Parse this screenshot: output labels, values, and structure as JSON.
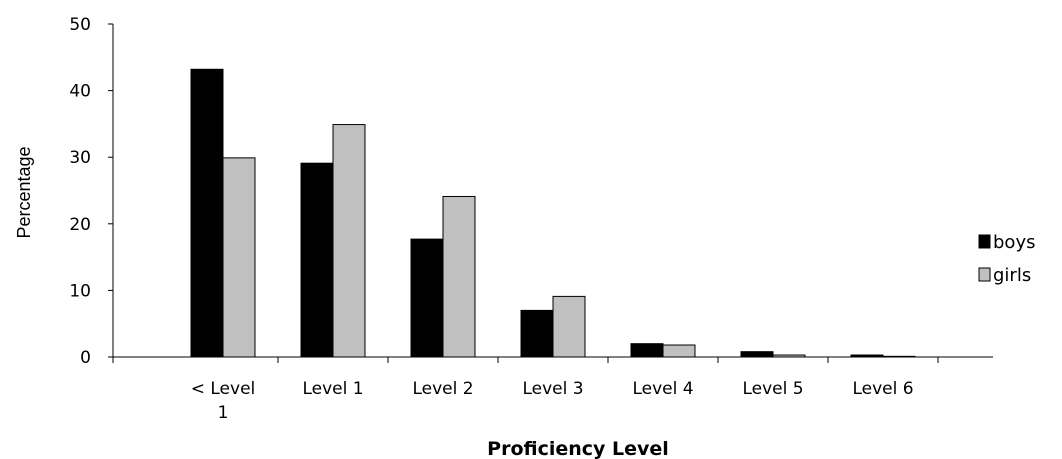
{
  "chart_data": {
    "type": "bar",
    "title": "",
    "xlabel": "Proficiency Level",
    "ylabel": "Percentage",
    "categories": [
      "< Level 1",
      "Level 1",
      "Level 2",
      "Level 3",
      "Level 4",
      "Level 5",
      "Level 6"
    ],
    "category_lines": [
      [
        "< Level",
        "1"
      ],
      [
        "Level 1"
      ],
      [
        "Level 2"
      ],
      [
        "Level 3"
      ],
      [
        "Level 4"
      ],
      [
        "Level 5"
      ],
      [
        "Level 6"
      ]
    ],
    "ylim": [
      0,
      50
    ],
    "yticks": [
      0,
      10,
      20,
      30,
      40,
      50
    ],
    "grid": false,
    "legend_position": "right",
    "series": [
      {
        "name": "boys",
        "color": "#000000",
        "values": [
          43.2,
          29.1,
          17.7,
          7.0,
          2.0,
          0.8,
          0.3
        ]
      },
      {
        "name": "girls",
        "color": "#c0c0c0",
        "values": [
          29.9,
          34.9,
          24.1,
          9.1,
          1.8,
          0.3,
          0.1
        ]
      }
    ]
  }
}
